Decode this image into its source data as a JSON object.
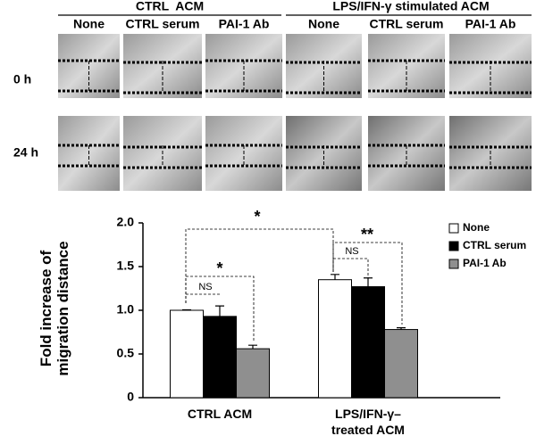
{
  "panel": {
    "groups": [
      "CTRL  ACM",
      "LPS/IFN-γ stimulated ACM"
    ],
    "columns": [
      "None",
      "CTRL serum",
      "PAI-1 Ab",
      "None",
      "CTRL serum",
      "PAI-1 Ab"
    ],
    "rows": [
      "0 h",
      "24 h"
    ]
  },
  "chart_data": {
    "type": "bar",
    "ylabel": "Fold increase of\nmigration distance",
    "categories": [
      "CTRL  ACM",
      "LPS/IFN-γ–\ntreated ACM"
    ],
    "series": [
      {
        "name": "None",
        "color": "#ffffff",
        "values": [
          1.0,
          1.35
        ],
        "errors": [
          0.005,
          0.06
        ]
      },
      {
        "name": "CTRL serum",
        "color": "#000000",
        "values": [
          0.93,
          1.27
        ],
        "errors": [
          0.12,
          0.1
        ]
      },
      {
        "name": "PAI-1 Ab",
        "color": "#8f8f8f",
        "values": [
          0.56,
          0.78
        ],
        "errors": [
          0.04,
          0.02
        ]
      }
    ],
    "ylim": [
      0,
      2
    ],
    "yticks": [
      0,
      0.5,
      {
        "value": 1,
        "label": "1.0"
      },
      1.5,
      {
        "value": 2,
        "label": "2.0"
      }
    ],
    "grid": false,
    "legend": "right",
    "annotations": [
      "*",
      "NS",
      "*",
      "**",
      "NS"
    ]
  }
}
